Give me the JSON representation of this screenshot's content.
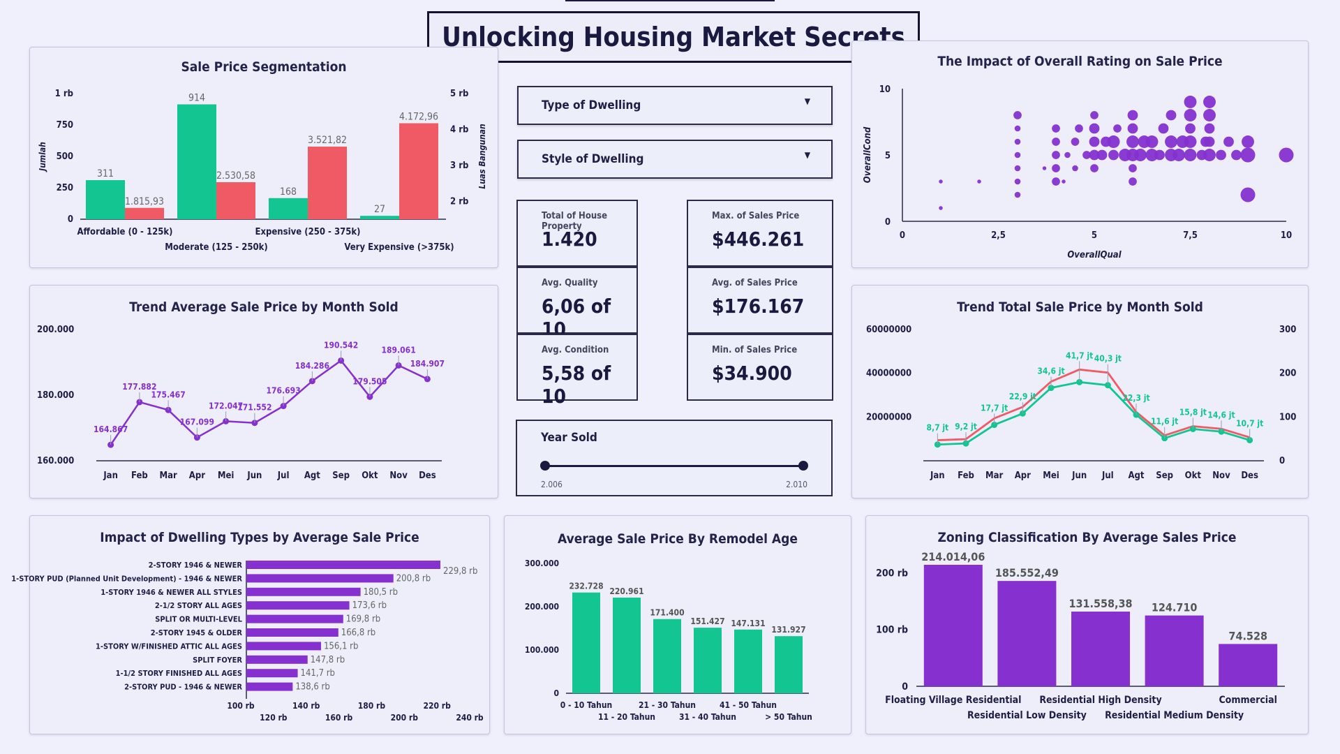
{
  "title": "Unlocking Housing Market Secrets",
  "filters": {
    "dwelling_type": "Type of Dwelling",
    "dwelling_style": "Style of Dwelling"
  },
  "kpis": {
    "total_label": "Total of House Property",
    "total_value": "1.420",
    "max_label": "Max. of Sales Price",
    "max_value": "$446.261",
    "quality_label": "Avg. Quality",
    "quality_value": "6,06 of 10",
    "avg_label": "Avg. of Sales Price",
    "avg_value": "$176.167",
    "condition_label": "Avg. Condition",
    "condition_value": "5,58 of 10",
    "min_label": "Min. of Sales Price",
    "min_value": "$34.900"
  },
  "year_slider": {
    "label": "Year Sold",
    "min_label": "2.006",
    "max_label": "2.010"
  },
  "colors": {
    "green": "#13c591",
    "red": "#f05a64",
    "purple": "#8530cf",
    "navy": "#1a1a40"
  },
  "chart_data": [
    {
      "id": "segmentation",
      "type": "bar",
      "title": "Sale Price Segmentation",
      "categories": [
        "Affordable (0 - 125k)",
        "Moderate (125 - 250k)",
        "Expensive (250 - 375k)",
        "Very Expensive (>375k)"
      ],
      "series": [
        {
          "name": "Jumlah",
          "values": [
            311,
            914,
            168,
            27
          ],
          "labels": [
            "311",
            "914",
            "168",
            "27"
          ]
        },
        {
          "name": "Luas Bangunan",
          "values": [
            1815.93,
            2530.58,
            3521.82,
            4172.96
          ],
          "labels": [
            "1.815,93",
            "2.530,58",
            "3.521,82",
            "4.172,96"
          ]
        }
      ],
      "ylabel": "Jumlah",
      "y2label": "Luas Bangunan",
      "yticks": [
        "0",
        "250",
        "500",
        "750",
        "1 rb"
      ],
      "y2ticks": [
        "2 rb",
        "3 rb",
        "4 rb",
        "5 rb"
      ]
    },
    {
      "id": "trend_avg",
      "type": "line",
      "title": "Trend Average Sale Price by Month Sold",
      "categories": [
        "Jan",
        "Feb",
        "Mar",
        "Apr",
        "Mei",
        "Jun",
        "Jul",
        "Agt",
        "Sep",
        "Okt",
        "Nov",
        "Des"
      ],
      "values": [
        164867,
        177882,
        175467,
        167099,
        172047,
        171552,
        176693,
        184286,
        190542,
        179505,
        189061,
        184907
      ],
      "labels": [
        "164.867",
        "177.882",
        "175.467",
        "167.099",
        "172.047",
        "171.552",
        "176.693",
        "184.286",
        "190.542",
        "179.505",
        "189.061",
        "184.907"
      ],
      "yticks": [
        "160.000",
        "180.000",
        "200.000"
      ],
      "ylim": [
        160000,
        200000
      ]
    },
    {
      "id": "dwelling_types",
      "type": "bar",
      "title": "Impact of Dwelling Types by Average Sale Price",
      "categories": [
        "2-STORY 1946 & NEWER",
        "1-STORY PUD (Planned Unit Development) - 1946 & NEWER",
        "1-STORY 1946 & NEWER ALL STYLES",
        "2-1/2 STORY ALL AGES",
        "SPLIT OR MULTI-LEVEL",
        "2-STORY 1945 & OLDER",
        "1-STORY W/FINISHED ATTIC ALL AGES",
        "SPLIT FOYER",
        "1-1/2 STORY FINISHED ALL AGES",
        "2-STORY PUD - 1946 & NEWER"
      ],
      "values": [
        229.8,
        200.8,
        180.5,
        173.6,
        169.8,
        166.8,
        156.1,
        147.8,
        141.7,
        138.6
      ],
      "labels": [
        "229,8 rb",
        "200,8 rb",
        "180,5 rb",
        "173,6 rb",
        "169,8 rb",
        "166,8 rb",
        "156,1 rb",
        "147,8 rb",
        "141,7 rb",
        "138,6 rb"
      ],
      "xticks_top": [
        "100 rb",
        "140 rb",
        "180 rb",
        "220 rb"
      ],
      "xticks_bottom": [
        "120 rb",
        "160 rb",
        "200 rb",
        "240 rb"
      ],
      "xlim": [
        100,
        240
      ]
    },
    {
      "id": "scatter",
      "type": "scatter",
      "title": "The Impact of Overall Rating on Sale Price",
      "xlabel": "OverallQual",
      "ylabel": "OverallCond",
      "xticks": [
        "0",
        "2,5",
        "5",
        "7,5",
        "10"
      ],
      "yticks": [
        "0",
        "5",
        "10"
      ],
      "xlim": [
        0,
        10
      ],
      "ylim": [
        0,
        10
      ],
      "points": [
        [
          1,
          1,
          1
        ],
        [
          1,
          3,
          1
        ],
        [
          2,
          3,
          1
        ],
        [
          3,
          2,
          2
        ],
        [
          3,
          3,
          2
        ],
        [
          3,
          4,
          2
        ],
        [
          3,
          5,
          2
        ],
        [
          3,
          6,
          2
        ],
        [
          3,
          7,
          2
        ],
        [
          3,
          8,
          3
        ],
        [
          3.7,
          4,
          1
        ],
        [
          4,
          3,
          3
        ],
        [
          4,
          4,
          3
        ],
        [
          4,
          5,
          3
        ],
        [
          4,
          6,
          3
        ],
        [
          4,
          7,
          3
        ],
        [
          4.2,
          3,
          1
        ],
        [
          4.3,
          5,
          2
        ],
        [
          4.5,
          4,
          2
        ],
        [
          4.5,
          6,
          3
        ],
        [
          4.6,
          7,
          3
        ],
        [
          4.8,
          5,
          3
        ],
        [
          5,
          4,
          3
        ],
        [
          5,
          5,
          4
        ],
        [
          5,
          6,
          4
        ],
        [
          5,
          7,
          4
        ],
        [
          5,
          8,
          3
        ],
        [
          5.2,
          5,
          4
        ],
        [
          5.3,
          6,
          4
        ],
        [
          5.5,
          5,
          4
        ],
        [
          5.5,
          6,
          5
        ],
        [
          5.6,
          7,
          3
        ],
        [
          5.8,
          5,
          5
        ],
        [
          6,
          3,
          3
        ],
        [
          6,
          4,
          3
        ],
        [
          6,
          5,
          5
        ],
        [
          6,
          6,
          5
        ],
        [
          6,
          7,
          4
        ],
        [
          6,
          8,
          4
        ],
        [
          6.2,
          5,
          5
        ],
        [
          6.3,
          6,
          5
        ],
        [
          6.5,
          5,
          5
        ],
        [
          6.5,
          6,
          5
        ],
        [
          6.7,
          5,
          4
        ],
        [
          6.8,
          7,
          4
        ],
        [
          7,
          5,
          5
        ],
        [
          7,
          6,
          5
        ],
        [
          7,
          8,
          4
        ],
        [
          7.2,
          5,
          5
        ],
        [
          7.3,
          6,
          5
        ],
        [
          7.5,
          5,
          5
        ],
        [
          7.5,
          6,
          5
        ],
        [
          7.5,
          7,
          4
        ],
        [
          7.5,
          8,
          5
        ],
        [
          7.5,
          9,
          5
        ],
        [
          7.8,
          5,
          4
        ],
        [
          7.9,
          6,
          4
        ],
        [
          8,
          5,
          5
        ],
        [
          8,
          6,
          4
        ],
        [
          8,
          7,
          4
        ],
        [
          8,
          8,
          5
        ],
        [
          8,
          9,
          5
        ],
        [
          8.3,
          5,
          4
        ],
        [
          8.5,
          6,
          4
        ],
        [
          8.7,
          5,
          4
        ],
        [
          9,
          2,
          6
        ],
        [
          9,
          5,
          6
        ],
        [
          9,
          6,
          5
        ],
        [
          10,
          5,
          6
        ]
      ]
    },
    {
      "id": "trend_total",
      "type": "line",
      "title": "Trend Total Sale Price by Month Sold",
      "categories": [
        "Jan",
        "Feb",
        "Mar",
        "Apr",
        "Mei",
        "Jun",
        "Jul",
        "Agt",
        "Sep",
        "Okt",
        "Nov",
        "Des"
      ],
      "series": [
        {
          "values": [
            9.4,
            9.9,
            19.4,
            24.6,
            36.2,
            41.7,
            40.3,
            22.3,
            11.6,
            15.8,
            14.6,
            10.7
          ],
          "labels": []
        },
        {
          "values": [
            8.7,
            9.2,
            17.7,
            22.9,
            34.6,
            41.7,
            40.3,
            22.3,
            11.6,
            15.8,
            14.6,
            10.7
          ],
          "labels": [
            "8,7 jt",
            "9,2 jt",
            "17,7 jt",
            "22,9 jt",
            "34,6 jt",
            "41,7 jt",
            "40,3 jt",
            "22,3 jt",
            "11,6 jt",
            "15,8 jt",
            "14,6 jt",
            "10,7 jt"
          ]
        }
      ],
      "yticks": [
        "20000000",
        "40000000",
        "60000000"
      ],
      "y2ticks": [
        "0",
        "100",
        "200",
        "300"
      ],
      "ylim": [
        0,
        60
      ]
    },
    {
      "id": "remodel_age",
      "type": "bar",
      "title": "Average Sale Price By Remodel Age",
      "categories": [
        "0 - 10 Tahun",
        "11 - 20 Tahun",
        "21 - 30 Tahun",
        "31 - 40 Tahun",
        "41 - 50 Tahun",
        "> 50 Tahun"
      ],
      "values": [
        232728,
        220961,
        171400,
        151427,
        147131,
        131927
      ],
      "labels": [
        "232.728",
        "220.961",
        "171.400",
        "151.427",
        "147.131",
        "131.927"
      ],
      "yticks": [
        "0",
        "100.000",
        "200.000",
        "300.000"
      ],
      "ylim": [
        0,
        300000
      ]
    },
    {
      "id": "zoning",
      "type": "bar",
      "title": "Zoning Classification By Average Sales Price",
      "categories": [
        "Floating Village Residential",
        "Residential Low Density",
        "Residential High Density",
        "Residential Medium Density",
        "Commercial"
      ],
      "values": [
        214014.06,
        185552.49,
        131558.38,
        124710,
        74528
      ],
      "labels": [
        "214.014,06",
        "185.552,49",
        "131.558,38",
        "124.710",
        "74.528"
      ],
      "yticks": [
        "0",
        "100 rb",
        "200 rb"
      ],
      "ylim": [
        0,
        230000
      ]
    }
  ]
}
